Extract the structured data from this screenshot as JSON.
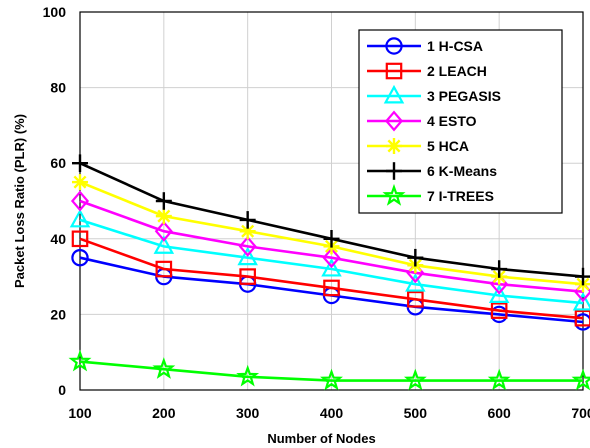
{
  "chart_data": {
    "type": "line",
    "title": "",
    "xlabel": "Number of Nodes",
    "ylabel": "Packet Loss Ratio (PLR) (%)",
    "x": [
      100,
      200,
      300,
      400,
      500,
      600,
      700
    ],
    "xlim": [
      100,
      700
    ],
    "ylim": [
      0,
      100
    ],
    "x_ticks": [
      "100",
      "200",
      "300",
      "400",
      "500",
      "600",
      "700"
    ],
    "y_ticks": [
      "0",
      "20",
      "40",
      "60",
      "80",
      "100"
    ],
    "grid": true,
    "legend_position": "top-right",
    "series": [
      {
        "name": "1 H-CSA",
        "color": "#0000ff",
        "marker": "circle",
        "values": [
          35,
          30,
          28,
          25,
          22,
          20,
          18
        ]
      },
      {
        "name": "2 LEACH",
        "color": "#ff0000",
        "marker": "square",
        "values": [
          40,
          32,
          30,
          27,
          24,
          21,
          19
        ]
      },
      {
        "name": "3 PEGASIS",
        "color": "#00ffff",
        "marker": "triangle",
        "values": [
          45,
          38,
          35,
          32,
          28,
          25,
          23
        ]
      },
      {
        "name": "4 ESTO",
        "color": "#ff00ff",
        "marker": "diamond",
        "values": [
          50,
          42,
          38,
          35,
          31,
          28,
          26
        ]
      },
      {
        "name": "5 HCA",
        "color": "#ffff00",
        "marker": "asterisk",
        "values": [
          55,
          46,
          42,
          38,
          33,
          30,
          28
        ]
      },
      {
        "name": "6 K-Means",
        "color": "#000000",
        "marker": "plus",
        "values": [
          60,
          50,
          45,
          40,
          35,
          32,
          30
        ]
      },
      {
        "name": "7 I-TREES",
        "color": "#00ff00",
        "marker": "star",
        "values": [
          7.5,
          5.5,
          3.5,
          2.5,
          2.5,
          2.5,
          2.5
        ]
      }
    ]
  }
}
